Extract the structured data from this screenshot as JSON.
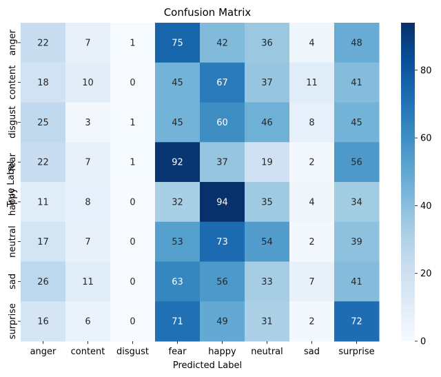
{
  "chart_data": {
    "type": "heatmap",
    "title": "Confusion Matrix",
    "xlabel": "Predicted Label",
    "ylabel": "True Label",
    "x_categories": [
      "anger",
      "content",
      "disgust",
      "fear",
      "happy",
      "neutral",
      "sad",
      "surprise"
    ],
    "y_categories": [
      "anger",
      "content",
      "disgust",
      "fear",
      "happy",
      "neutral",
      "sad",
      "surprise"
    ],
    "values": [
      [
        22,
        7,
        1,
        75,
        42,
        36,
        4,
        48
      ],
      [
        18,
        10,
        0,
        45,
        67,
        37,
        11,
        41
      ],
      [
        25,
        3,
        1,
        45,
        60,
        46,
        8,
        45
      ],
      [
        22,
        7,
        1,
        92,
        37,
        19,
        2,
        56
      ],
      [
        11,
        8,
        0,
        32,
        94,
        35,
        4,
        34
      ],
      [
        17,
        7,
        0,
        53,
        73,
        54,
        2,
        39
      ],
      [
        26,
        11,
        0,
        63,
        56,
        33,
        7,
        41
      ],
      [
        16,
        6,
        0,
        71,
        49,
        31,
        2,
        72
      ]
    ],
    "colormap": "Blues",
    "vmin": 0,
    "vmax": 94,
    "colorbar_ticks": [
      0,
      20,
      40,
      60,
      80
    ]
  }
}
